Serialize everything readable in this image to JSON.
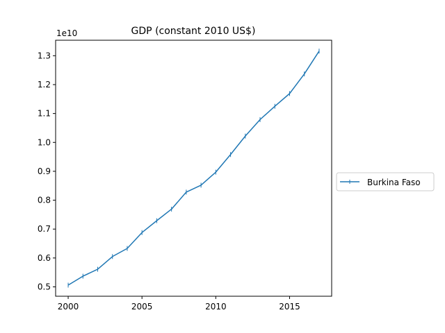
{
  "chart_data": {
    "type": "line",
    "title": "GDP (constant 2010 US$)",
    "xlabel": "",
    "ylabel": "",
    "y_offset_label": "1e10",
    "xlim": [
      1999.15,
      2017.85
    ],
    "ylim": [
      0.4676,
      1.3536
    ],
    "x_ticks": [
      2000,
      2005,
      2010,
      2015
    ],
    "x_tick_labels": [
      "2000",
      "2005",
      "2010",
      "2015"
    ],
    "y_ticks": [
      0.5,
      0.6,
      0.7,
      0.8,
      0.9,
      1.0,
      1.1,
      1.2,
      1.3
    ],
    "y_tick_labels": [
      "0.5",
      "0.6",
      "0.7",
      "0.8",
      "0.9",
      "1.0",
      "1.1",
      "1.2",
      "1.3"
    ],
    "grid": false,
    "legend_position": "right",
    "series": [
      {
        "name": "Burkina Faso",
        "color": "#1f77b4",
        "marker": "vertical-line",
        "x": [
          2000,
          2001,
          2002,
          2003,
          2004,
          2005,
          2006,
          2007,
          2008,
          2009,
          2010,
          2011,
          2012,
          2013,
          2014,
          2015,
          2016,
          2017
        ],
        "y": [
          0.506,
          0.537,
          0.561,
          0.605,
          0.633,
          0.688,
          0.729,
          0.769,
          0.828,
          0.852,
          0.897,
          0.958,
          1.022,
          1.079,
          1.125,
          1.169,
          1.237,
          1.316
        ]
      }
    ]
  }
}
